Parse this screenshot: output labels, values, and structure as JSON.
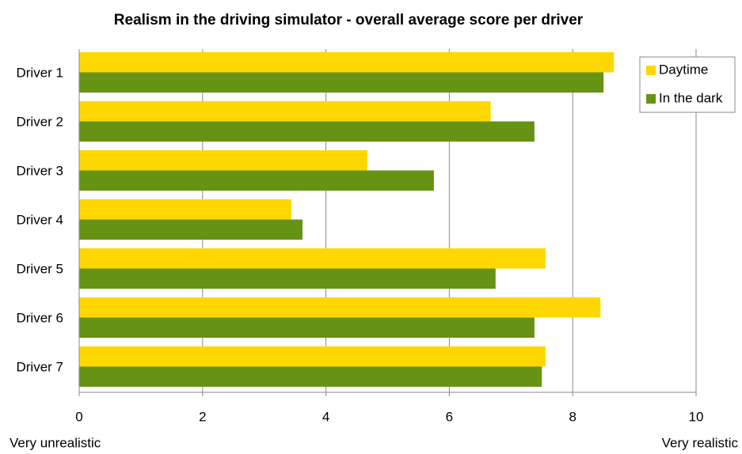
{
  "chart_data": {
    "type": "hbar",
    "title": "Realism in the driving simulator - overall average score per driver",
    "categories": [
      "Driver 1",
      "Driver 2",
      "Driver 3",
      "Driver 4",
      "Driver 5",
      "Driver 6",
      "Driver 7"
    ],
    "series": [
      {
        "name": "Daytime",
        "color": "#ffd700",
        "values": [
          8.67,
          6.67,
          4.67,
          3.44,
          7.56,
          8.45,
          7.56
        ]
      },
      {
        "name": "In the dark",
        "color": "#669314",
        "values": [
          8.5,
          7.38,
          5.75,
          3.62,
          6.75,
          7.38,
          7.5
        ]
      }
    ],
    "xlim": [
      0,
      10
    ],
    "xticks": [
      0,
      2,
      4,
      6,
      8,
      10
    ],
    "grid": true,
    "legend": "upper right",
    "annotations": [
      "Very unrealistic",
      "Very realistic"
    ]
  }
}
